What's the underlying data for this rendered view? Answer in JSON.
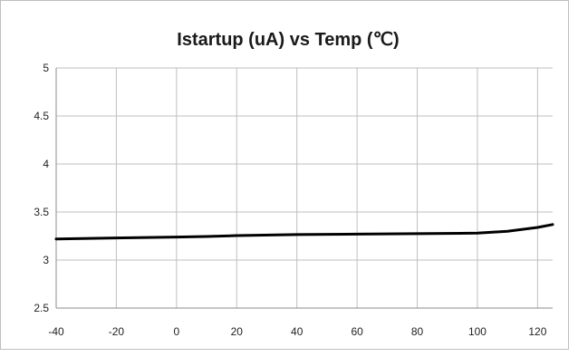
{
  "chart_data": {
    "type": "line",
    "title": "Istartup (uA) vs Temp (℃)",
    "xlabel": "",
    "ylabel": "",
    "xlim": [
      -40,
      125
    ],
    "ylim": [
      2.5,
      5
    ],
    "grid": true,
    "legend": "none",
    "x_ticks": [
      "-40",
      "-20",
      "0",
      "20",
      "40",
      "60",
      "80",
      "100",
      "120"
    ],
    "y_ticks": [
      "2.5",
      "3",
      "3.5",
      "4",
      "4.5",
      "5"
    ],
    "line_color": "#000000",
    "grid_color": "#bfbfbf",
    "series": [
      {
        "x": [
          -40,
          -20,
          0,
          10,
          20,
          40,
          60,
          80,
          100,
          110,
          120,
          125
        ],
        "values": [
          3.22,
          3.23,
          3.24,
          3.245,
          3.255,
          3.265,
          3.27,
          3.275,
          3.28,
          3.3,
          3.34,
          3.37
        ]
      }
    ]
  }
}
